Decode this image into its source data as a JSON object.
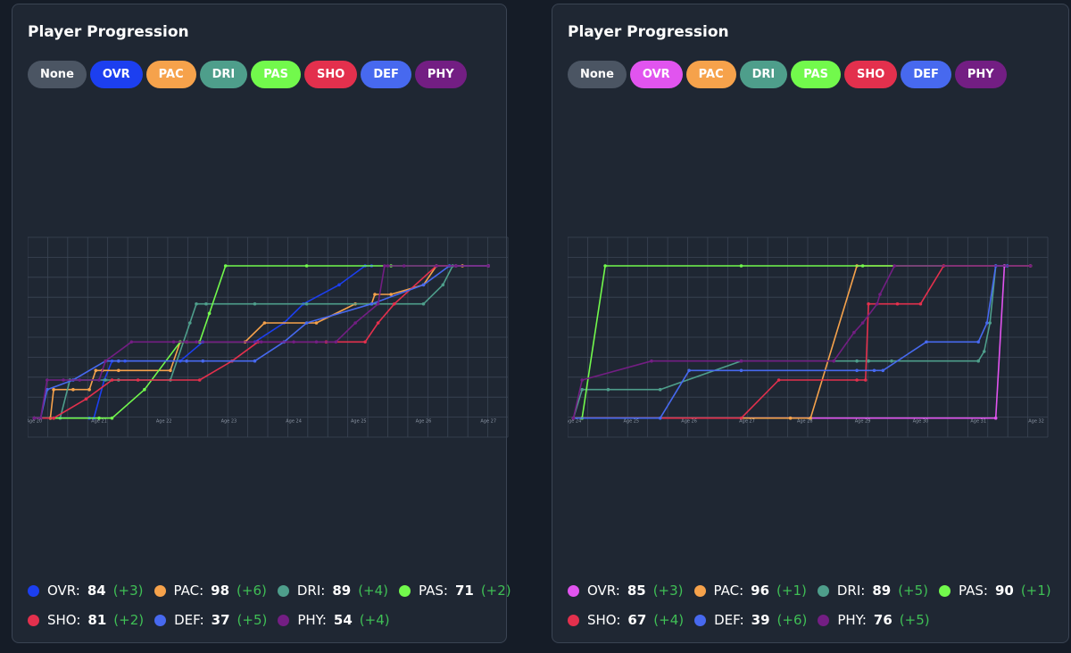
{
  "charts": [
    {
      "title": "Player Progression",
      "buttons": [
        {
          "label": "None",
          "color": "#4b5563"
        },
        {
          "label": "OVR",
          "color": "#1c3ff0"
        },
        {
          "label": "PAC",
          "color": "#f6a24b"
        },
        {
          "label": "DRI",
          "color": "#4e9e8b"
        },
        {
          "label": "PAS",
          "color": "#72f94c"
        },
        {
          "label": "SHO",
          "color": "#e3304d"
        },
        {
          "label": "DEF",
          "color": "#4769ef"
        },
        {
          "label": "PHY",
          "color": "#731e83"
        }
      ],
      "legend_rows": [
        [
          {
            "label": "OVR:",
            "value": "84",
            "delta": "(+3)",
            "color": "#1c3ff0"
          },
          {
            "label": "PAC:",
            "value": "98",
            "delta": "(+6)",
            "color": "#f6a24b"
          },
          {
            "label": "DRI:",
            "value": "89",
            "delta": "(+4)",
            "color": "#4e9e8b"
          },
          {
            "label": "PAS:",
            "value": "71",
            "delta": "(+2)",
            "color": "#72f94c"
          }
        ],
        [
          {
            "label": "SHO:",
            "value": "81",
            "delta": "(+2)",
            "color": "#e3304d"
          },
          {
            "label": "DEF:",
            "value": "37",
            "delta": "(+5)",
            "color": "#4769ef"
          },
          {
            "label": "PHY:",
            "value": "54",
            "delta": "(+4)",
            "color": "#731e83"
          }
        ]
      ]
    },
    {
      "title": "Player Progression",
      "buttons": [
        {
          "label": "None",
          "color": "#4b5563"
        },
        {
          "label": "OVR",
          "color": "#e154ef"
        },
        {
          "label": "PAC",
          "color": "#f6a24b"
        },
        {
          "label": "DRI",
          "color": "#4e9e8b"
        },
        {
          "label": "PAS",
          "color": "#72f94c"
        },
        {
          "label": "SHO",
          "color": "#e3304d"
        },
        {
          "label": "DEF",
          "color": "#4769ef"
        },
        {
          "label": "PHY",
          "color": "#731e83"
        }
      ],
      "legend_rows": [
        [
          {
            "label": "OVR:",
            "value": "85",
            "delta": "(+3)",
            "color": "#e154ef"
          },
          {
            "label": "PAC:",
            "value": "96",
            "delta": "(+1)",
            "color": "#f6a24b"
          },
          {
            "label": "DRI:",
            "value": "89",
            "delta": "(+5)",
            "color": "#4e9e8b"
          },
          {
            "label": "PAS:",
            "value": "90",
            "delta": "(+1)",
            "color": "#72f94c"
          }
        ],
        [
          {
            "label": "SHO:",
            "value": "67",
            "delta": "(+4)",
            "color": "#e3304d"
          },
          {
            "label": "DEF:",
            "value": "39",
            "delta": "(+6)",
            "color": "#4769ef"
          },
          {
            "label": "PHY:",
            "value": "76",
            "delta": "(+5)",
            "color": "#731e83"
          }
        ]
      ]
    }
  ],
  "chart_data": [
    {
      "type": "line",
      "title": "Player Progression",
      "xlabel": "",
      "ylabel": "",
      "x_ticks": [
        "Age 20",
        "Age 21",
        "Age 22",
        "Age 23",
        "Age 24",
        "Age 25",
        "Age 26",
        "Age 27"
      ],
      "xlim": [
        19.9,
        27.3
      ],
      "ylim": [
        -1,
        9.5
      ],
      "y_axis_labels": "none",
      "grid": true,
      "series": [
        {
          "name": "OVR",
          "color": "#1c3ff0",
          "x": [
            20.0,
            20.85,
            20.92,
            21.08,
            21.2,
            21.4,
            22.25,
            22.6,
            23.4,
            23.85,
            24.15,
            24.7,
            25.1,
            25.2
          ],
          "y": [
            0,
            0,
            0,
            2,
            3,
            3,
            3,
            4,
            4,
            5,
            6,
            7,
            8,
            8
          ]
        },
        {
          "name": "PAC",
          "color": "#f6a24b",
          "x": [
            20.0,
            20.25,
            20.3,
            20.6,
            20.85,
            20.95,
            21.05,
            21.3,
            22.1,
            22.25,
            22.35,
            22.55,
            23.25,
            23.55,
            24.35,
            24.95,
            25.2,
            25.25,
            25.5,
            26.0,
            26.2,
            26.5,
            26.6,
            27.0
          ],
          "y": [
            0,
            0,
            1.5,
            1.5,
            1.5,
            2.5,
            2.5,
            2.5,
            2.5,
            4,
            4,
            4,
            4,
            5,
            5,
            6,
            6,
            6.5,
            6.5,
            7,
            8,
            8,
            8,
            8
          ]
        },
        {
          "name": "DRI",
          "color": "#4e9e8b",
          "x": [
            20.0,
            20.4,
            20.55,
            21.1,
            21.3,
            22.1,
            22.4,
            22.5,
            22.65,
            23.4,
            24.2,
            25.2,
            26.0,
            26.3,
            26.45,
            27.0
          ],
          "y": [
            0,
            0,
            2,
            2,
            2,
            2,
            5,
            6,
            6,
            6,
            6,
            6,
            6,
            7,
            8,
            8
          ]
        },
        {
          "name": "PAS",
          "color": "#72f94c",
          "x": [
            20.0,
            20.3,
            21.0,
            21.2,
            21.7,
            22.25,
            22.35,
            22.55,
            22.7,
            22.95,
            24.2,
            25.5,
            26.2,
            27.0
          ],
          "y": [
            0,
            0,
            0,
            0,
            1.5,
            4,
            4,
            4,
            5.5,
            8,
            8,
            8,
            8,
            8
          ]
        },
        {
          "name": "SHO",
          "color": "#e3304d",
          "x": [
            20.0,
            20.3,
            20.8,
            21.2,
            21.6,
            22.55,
            23.05,
            23.45,
            23.85,
            24.5,
            25.1,
            25.3,
            25.55,
            26.2,
            27.0
          ],
          "y": [
            0,
            0,
            1,
            2,
            2,
            2,
            3,
            4,
            4,
            4,
            4,
            5,
            6,
            8,
            8
          ]
        },
        {
          "name": "DEF",
          "color": "#4769ef",
          "x": [
            20.0,
            20.1,
            20.2,
            20.6,
            21.1,
            21.3,
            22.35,
            22.6,
            23.4,
            23.85,
            24.2,
            25.2,
            26.0,
            26.4,
            26.5,
            27.0
          ],
          "y": [
            0,
            0,
            1.5,
            2,
            3,
            3,
            3,
            3,
            3,
            4,
            5,
            6,
            7,
            8,
            8,
            8
          ]
        },
        {
          "name": "PHY",
          "color": "#731e83",
          "x": [
            20.0,
            20.1,
            20.2,
            20.45,
            20.7,
            21.0,
            21.1,
            21.5,
            22.15,
            22.35,
            22.5,
            23.5,
            24.0,
            24.35,
            24.65,
            24.95,
            25.3,
            25.4,
            25.45,
            25.7,
            26.2,
            26.5,
            27.0
          ],
          "y": [
            0,
            0,
            2,
            2,
            2,
            2,
            3,
            4,
            4,
            4,
            4,
            4,
            4,
            4,
            4,
            5,
            6,
            8,
            8,
            8,
            8,
            8,
            8
          ]
        }
      ]
    },
    {
      "type": "line",
      "title": "Player Progression",
      "xlabel": "",
      "ylabel": "",
      "x_ticks": [
        "Age 24",
        "Age 25",
        "Age 26",
        "Age 27",
        "Age 28",
        "Age 29",
        "Age 30",
        "Age 31",
        "Age 32"
      ],
      "xlim": [
        23.9,
        32.2
      ],
      "ylim": [
        -1,
        9.5
      ],
      "y_axis_labels": "none",
      "grid": true,
      "series": [
        {
          "name": "OVR",
          "color": "#e154ef",
          "x": [
            24.0,
            31.3,
            31.45
          ],
          "y": [
            0,
            0,
            8
          ]
        },
        {
          "name": "PAC",
          "color": "#f6a24b",
          "x": [
            24.0,
            27.75,
            28.1,
            28.9,
            31.9
          ],
          "y": [
            0,
            0,
            0,
            8,
            8
          ]
        },
        {
          "name": "DRI",
          "color": "#4e9e8b",
          "x": [
            24.0,
            24.15,
            24.6,
            25.5,
            26.9,
            28.9,
            29.1,
            29.5,
            31.0,
            31.1,
            31.2,
            31.3
          ],
          "y": [
            0,
            1.5,
            1.5,
            1.5,
            3,
            3,
            3,
            3,
            3,
            3.5,
            5,
            8
          ]
        },
        {
          "name": "PAS",
          "color": "#72f94c",
          "x": [
            24.0,
            24.15,
            24.55,
            26.9,
            29.0,
            31.9
          ],
          "y": [
            0,
            0,
            8,
            8,
            8,
            8
          ]
        },
        {
          "name": "SHO",
          "color": "#e3304d",
          "x": [
            24.0,
            26.9,
            27.55,
            28.9,
            29.05,
            29.1,
            29.6,
            30.0,
            30.4,
            31.9
          ],
          "y": [
            0,
            0,
            2,
            2,
            2,
            6,
            6,
            6,
            8,
            8
          ]
        },
        {
          "name": "DEF",
          "color": "#4769ef",
          "x": [
            24.0,
            25.5,
            26.0,
            26.9,
            28.9,
            29.2,
            29.35,
            30.1,
            31.0,
            31.15,
            31.3,
            31.5
          ],
          "y": [
            0,
            0,
            2.5,
            2.5,
            2.5,
            2.5,
            2.5,
            4,
            4,
            5,
            8,
            8
          ]
        },
        {
          "name": "PHY",
          "color": "#731e83",
          "x": [
            24.0,
            24.15,
            25.35,
            26.9,
            28.5,
            28.85,
            29.0,
            29.25,
            29.3,
            29.55,
            31.9
          ],
          "y": [
            0,
            2,
            3,
            3,
            3,
            4.5,
            5,
            6,
            6.5,
            8,
            8
          ]
        }
      ]
    }
  ]
}
